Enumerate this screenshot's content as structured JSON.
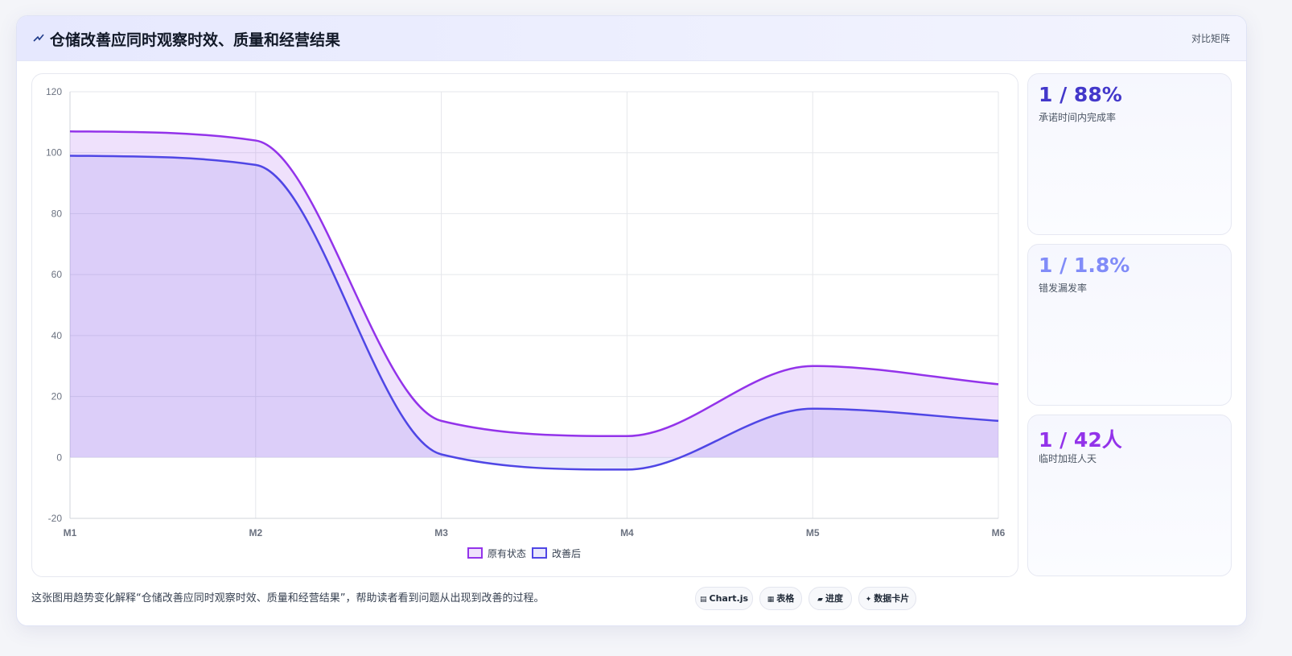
{
  "header": {
    "title": "仓储改善应同时观察时效、质量和经营结果",
    "tag": "对比矩阵"
  },
  "colors": {
    "series_before": "#9333ea",
    "series_after": "#4f46e5",
    "kpi1": "#4338ca",
    "kpi2": "#818cf8",
    "kpi3": "#9333ea"
  },
  "chart_data": {
    "type": "area",
    "categories": [
      "M1",
      "M2",
      "M3",
      "M4",
      "M5",
      "M6"
    ],
    "series": [
      {
        "name": "原有状态",
        "values": [
          107,
          104,
          12,
          7,
          30,
          24
        ]
      },
      {
        "name": "改善后",
        "values": [
          99,
          96,
          1,
          -4,
          16,
          12
        ]
      }
    ],
    "ylim": [
      -20,
      120
    ],
    "yticks": [
      -20,
      0,
      20,
      40,
      60,
      80,
      100,
      120
    ],
    "grid": true,
    "legend": "bottom"
  },
  "kpis": [
    {
      "value": "1 / 88%",
      "label": "承诺时间内完成率"
    },
    {
      "value": "1 / 1.8%",
      "label": "错发漏发率"
    },
    {
      "value": "1 / 42人",
      "label": "临时加班人天"
    }
  ],
  "caption": "这张图用趋势变化解释“仓储改善应同时观察时效、质量和经营结果”，帮助读者看到问题从出现到改善的过程。",
  "chips": [
    {
      "icon": "▤",
      "icon_name": "chart-icon",
      "label": "Chart.js"
    },
    {
      "icon": "▦",
      "icon_name": "table-icon",
      "label": "表格"
    },
    {
      "icon": "▰",
      "icon_name": "progress-icon",
      "label": "进度"
    },
    {
      "icon": "✦",
      "icon_name": "sparkle-icon",
      "label": "数据卡片"
    }
  ]
}
